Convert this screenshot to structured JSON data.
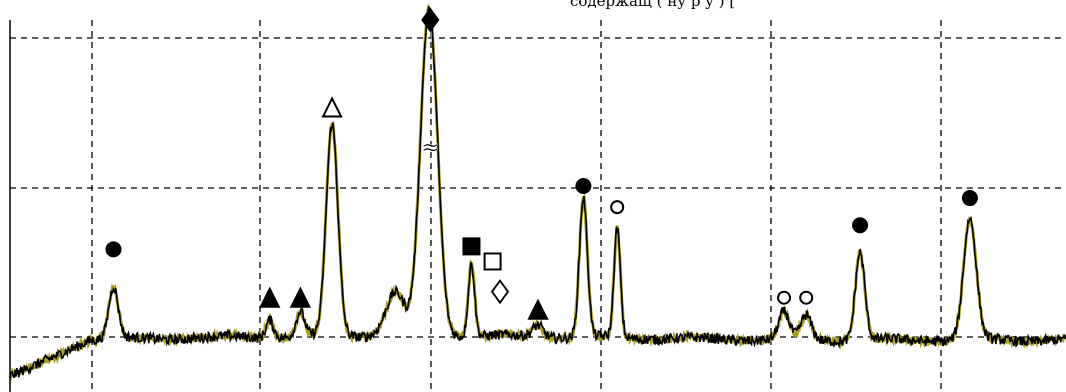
{
  "header_fragment": "содержащ (         ну    р   у   ) [ ",
  "chart_data": {
    "type": "line",
    "title": "",
    "xlabel": "",
    "ylabel": "",
    "xlim": [
      0,
      100
    ],
    "ylim": [
      0,
      110
    ],
    "grid": true,
    "series": [
      {
        "color": "#a8a020",
        "role": "background-trace"
      },
      {
        "color": "#000000",
        "role": "main-trace"
      }
    ],
    "peaks": [
      {
        "x": 9.8,
        "y": 30,
        "marker": "filled-circle"
      },
      {
        "x": 24.6,
        "y": 14,
        "marker": "filled-triangle"
      },
      {
        "x": 27.5,
        "y": 14,
        "marker": "filled-triangle"
      },
      {
        "x": 30.5,
        "y": 77,
        "marker": "open-triangle"
      },
      {
        "x": 39.8,
        "y": 106,
        "marker": "filled-diamond"
      },
      {
        "x": 39.8,
        "y": 64,
        "marker": "approx-sign",
        "text": "≈"
      },
      {
        "x": 43.7,
        "y": 31,
        "marker": "filled-square"
      },
      {
        "x": 45.7,
        "y": 26,
        "marker": "open-square"
      },
      {
        "x": 46.4,
        "y": 16,
        "marker": "open-diamond"
      },
      {
        "x": 50.0,
        "y": 10,
        "marker": "filled-triangle"
      },
      {
        "x": 54.3,
        "y": 51,
        "marker": "filled-circle"
      },
      {
        "x": 57.5,
        "y": 44,
        "marker": "open-circle"
      },
      {
        "x": 73.3,
        "y": 14,
        "marker": "open-circle"
      },
      {
        "x": 75.4,
        "y": 14,
        "marker": "open-circle"
      },
      {
        "x": 80.5,
        "y": 38,
        "marker": "filled-circle"
      },
      {
        "x": 90.9,
        "y": 47,
        "marker": "filled-circle"
      }
    ]
  }
}
